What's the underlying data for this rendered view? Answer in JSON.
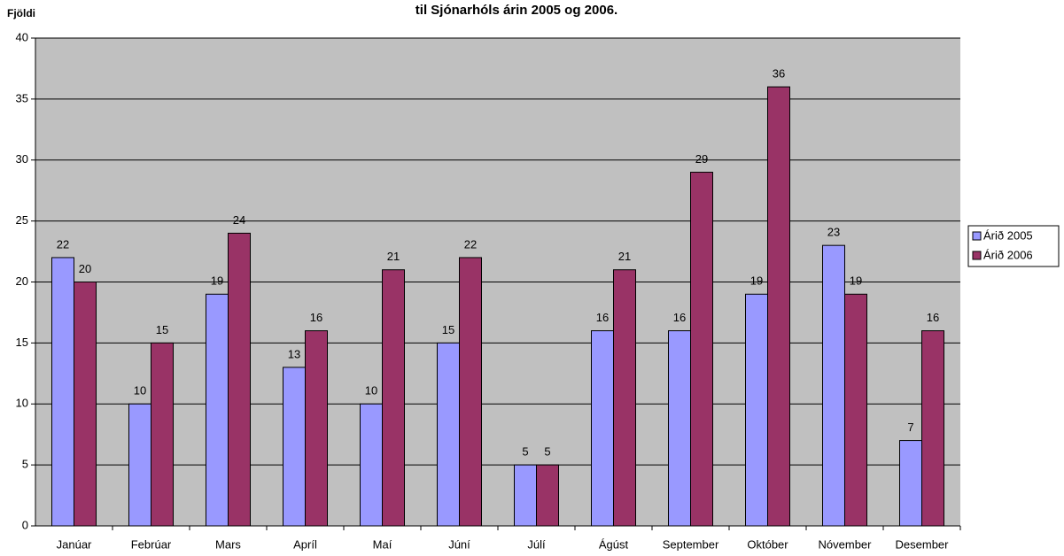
{
  "chart_data": {
    "type": "bar",
    "title": "til Sjónarhóls árin 2005 og 2006.",
    "y_label": "Fjöldi",
    "categories": [
      "Janúar",
      "Febrúar",
      "Mars",
      "Apríl",
      "Maí",
      "Júní",
      "Júlí",
      "Ágúst",
      "September",
      "Október",
      "Nóvember",
      "Desember"
    ],
    "series": [
      {
        "name": "Árið 2005",
        "color": "#9999ff",
        "values": [
          22,
          10,
          19,
          13,
          10,
          15,
          5,
          16,
          16,
          19,
          23,
          7
        ]
      },
      {
        "name": "Árið 2006",
        "color": "#993366",
        "values": [
          20,
          15,
          24,
          16,
          21,
          22,
          5,
          21,
          29,
          36,
          19,
          16
        ]
      }
    ],
    "ylim": [
      0,
      40
    ],
    "yticks": [
      0,
      5,
      10,
      15,
      20,
      25,
      30,
      35,
      40
    ],
    "grid": true,
    "legend": "right"
  }
}
